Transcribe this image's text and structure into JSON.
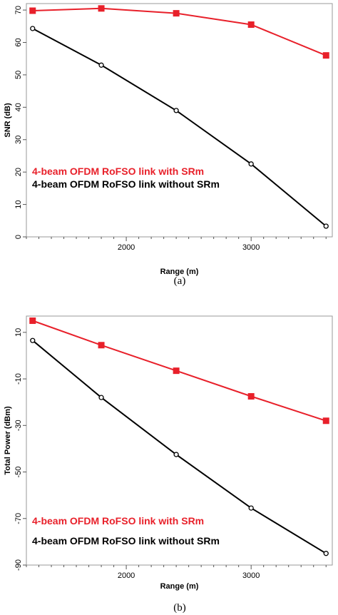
{
  "chart_data": [
    {
      "type": "line",
      "caption": "(a)",
      "xlabel": "Range (m)",
      "ylabel": "SNR (dB)",
      "xlim": [
        1200,
        3650
      ],
      "ylim": [
        0,
        72
      ],
      "xticks": [
        2000,
        3000
      ],
      "yticks": [
        0,
        10,
        20,
        30,
        40,
        50,
        60,
        70
      ],
      "minor_x_step": 100,
      "series": [
        {
          "name": "4-beam OFDM RoFSO link with SRm",
          "color": "#e8202a",
          "marker": "square",
          "x": [
            1250,
            1800,
            2400,
            3000,
            3600
          ],
          "values": [
            69.8,
            70.5,
            69,
            65.5,
            56
          ]
        },
        {
          "name": "4-beam OFDM RoFSO link without SRm",
          "color": "#000000",
          "marker": "circle",
          "x": [
            1250,
            1800,
            2400,
            3000,
            3600
          ],
          "values": [
            64.3,
            53,
            39,
            22.5,
            3.3
          ]
        }
      ]
    },
    {
      "type": "line",
      "caption": "(b)",
      "xlabel": "Range (m)",
      "ylabel": "Total Power (dBm)",
      "xlim": [
        1200,
        3650
      ],
      "ylim": [
        -90,
        17
      ],
      "xticks": [
        2000,
        3000
      ],
      "yticks": [
        -90,
        -70,
        -50,
        -30,
        -10,
        10
      ],
      "minor_x_step": 100,
      "series": [
        {
          "name": "4-beam OFDM RoFSO link with SRm",
          "color": "#e8202a",
          "marker": "square",
          "x": [
            1250,
            1800,
            2400,
            3000,
            3600
          ],
          "values": [
            15,
            4.5,
            -6.5,
            -17.5,
            -28
          ]
        },
        {
          "name": "4-beam OFDM RoFSO link without SRm",
          "color": "#000000",
          "marker": "circle",
          "x": [
            1250,
            1800,
            2400,
            3000,
            3600
          ],
          "values": [
            6.5,
            -18,
            -42.5,
            -65.5,
            -85
          ]
        }
      ]
    }
  ]
}
